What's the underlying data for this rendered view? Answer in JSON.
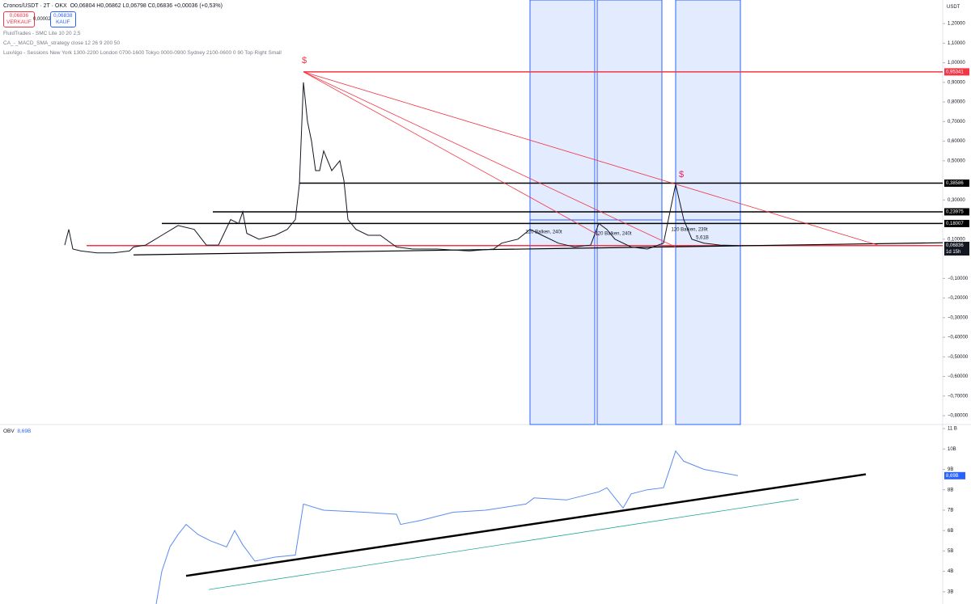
{
  "header": {
    "symbol": "Cronos/USDT · 2T · OKX",
    "ohlc": "O0,06804 H0,06862 L0,06798 C0,06836 +0,00036 (+0,53%)",
    "sell": {
      "price": "0,06836",
      "label": "VERKAUF"
    },
    "spread": "0,00002",
    "buy": {
      "price": "0,06838",
      "label": "KAUF"
    },
    "currency": "USDT"
  },
  "indicators": [
    "FluidTrades - SMC Lite 10 20 2,5",
    "CA_-_MACD_SMA_strategy close 12 26 9 200 50",
    "LuxAlgo - Sessions New York 1300-2200 London 0700-1600 Tokyo 0000-0900 Sydney 2100-0600 0 90 Top Right Small"
  ],
  "chart_data": [
    {
      "type": "line",
      "title": "Cronos/USDT",
      "color": "#131722",
      "xlim": [
        0,
        1165
      ],
      "ylim": [
        -0.845,
        1.32
      ],
      "x": [
        80,
        85,
        90,
        100,
        120,
        140,
        160,
        165,
        180,
        200,
        220,
        240,
        255,
        270,
        285,
        295,
        300,
        305,
        320,
        340,
        355,
        365,
        370,
        375,
        380,
        385,
        390,
        395,
        400,
        410,
        420,
        425,
        430,
        440,
        455,
        470,
        490,
        510,
        540,
        580,
        610,
        620,
        640,
        655,
        670,
        690,
        710,
        730,
        740,
        750,
        760,
        780,
        800,
        820,
        835,
        845,
        855,
        870,
        890,
        912
      ],
      "values": [
        0.07,
        0.15,
        0.05,
        0.04,
        0.03,
        0.03,
        0.04,
        0.06,
        0.07,
        0.12,
        0.17,
        0.15,
        0.07,
        0.07,
        0.2,
        0.18,
        0.24,
        0.13,
        0.1,
        0.12,
        0.15,
        0.2,
        0.38,
        0.9,
        0.7,
        0.6,
        0.45,
        0.45,
        0.55,
        0.45,
        0.5,
        0.4,
        0.2,
        0.15,
        0.12,
        0.12,
        0.06,
        0.05,
        0.05,
        0.04,
        0.05,
        0.08,
        0.1,
        0.15,
        0.12,
        0.08,
        0.06,
        0.07,
        0.18,
        0.15,
        0.1,
        0.06,
        0.05,
        0.08,
        0.38,
        0.2,
        0.1,
        0.08,
        0.07,
        0.068
      ],
      "yticks": [
        {
          "value": 1.2,
          "label": "1,20000"
        },
        {
          "value": 1.1,
          "label": "1,10000"
        },
        {
          "value": 1,
          "label": "1,00000"
        },
        {
          "value": 0.9,
          "label": "0,90000"
        },
        {
          "value": 0.8,
          "label": "0,80000"
        },
        {
          "value": 0.7,
          "label": "0,70000"
        },
        {
          "value": 0.6,
          "label": "0,60000"
        },
        {
          "value": 0.5,
          "label": "0,50000"
        },
        {
          "value": 0.3,
          "label": "0,30000"
        },
        {
          "value": 0.1,
          "label": "0,10000"
        },
        {
          "value": -0.1,
          "label": "−0,10000"
        },
        {
          "value": -0.2,
          "label": "−0,20000"
        },
        {
          "value": -0.3,
          "label": "−0,30000"
        },
        {
          "value": -0.4,
          "label": "−0,40000"
        },
        {
          "value": -0.5,
          "label": "−0,50000"
        },
        {
          "value": -0.6,
          "label": "−0,60000"
        },
        {
          "value": -0.7,
          "label": "−0,70000"
        },
        {
          "value": -0.8,
          "label": "−0,80000"
        }
      ],
      "levels": [
        {
          "value": 0.95341,
          "label": "0,95341",
          "color": "#f23645",
          "from": 375
        },
        {
          "value": 0.38586,
          "label": "0,38586",
          "color": "#000000",
          "from": 370
        },
        {
          "value": 0.23975,
          "label": "0,23975",
          "color": "#000000",
          "from": 263
        },
        {
          "value": 0.18007,
          "label": "0,18007",
          "color": "#000000",
          "from": 200
        },
        {
          "value": 0.06725,
          "label": "0,06725",
          "color": "#f23645",
          "from": 107
        }
      ],
      "last": {
        "value": 0.06836,
        "label": "0,06836",
        "countdown": "1d 15h"
      },
      "trendlines": [
        {
          "color": "#000000",
          "x": [
            165,
            1165
          ],
          "y": [
            0.02,
            0.082
          ]
        },
        {
          "color": "#f23645",
          "x": [
            375,
            740
          ],
          "y": [
            0.95341,
            0.12
          ]
        },
        {
          "color": "#f23645",
          "x": [
            375,
            835
          ],
          "y": [
            0.95341,
            0.06
          ]
        },
        {
          "color": "#f23645",
          "x": [
            375,
            1085
          ],
          "y": [
            0.95341,
            0.07
          ]
        }
      ],
      "sessions": [
        [
          655,
          735
        ],
        [
          738,
          818
        ],
        [
          835,
          915
        ]
      ],
      "annotations": [
        "$",
        "$",
        "120 Balken, 240t",
        "120 Balken, 240t",
        "120 Balken, 239t",
        "5,61B"
      ]
    },
    {
      "type": "line",
      "title": "OBV",
      "color": "#5b8def",
      "last_label": "8,69B",
      "xlim": [
        0,
        1165
      ],
      "ylim": [
        2.4,
        11.2
      ],
      "x": [
        193,
        200,
        210,
        220,
        230,
        245,
        260,
        280,
        290,
        300,
        315,
        340,
        365,
        375,
        400,
        450,
        490,
        495,
        520,
        560,
        600,
        650,
        660,
        700,
        740,
        750,
        770,
        780,
        800,
        820,
        835,
        845,
        870,
        912
      ],
      "values": [
        2.4,
        4,
        5.2,
        5.8,
        6.3,
        5.8,
        5.5,
        5.2,
        6,
        5.3,
        4.5,
        4.7,
        4.8,
        7.3,
        7,
        6.9,
        6.8,
        6.3,
        6.5,
        6.9,
        7,
        7.3,
        7.6,
        7.5,
        7.9,
        8.1,
        7.1,
        7.8,
        8,
        8.1,
        9.9,
        9.4,
        9,
        8.69
      ],
      "yticks": [
        {
          "value": 11,
          "label": "11 B"
        },
        {
          "value": 10,
          "label": "10B"
        },
        {
          "value": 9,
          "label": "9B"
        },
        {
          "value": 8,
          "label": "8B"
        },
        {
          "value": 7,
          "label": "7B"
        },
        {
          "value": 6,
          "label": "6B"
        },
        {
          "value": 5,
          "label": "5B"
        },
        {
          "value": 4,
          "label": "4B"
        },
        {
          "value": 3,
          "label": "3B"
        }
      ],
      "trendlines": [
        {
          "color": "#000000",
          "x": [
            230,
            1070
          ],
          "y": [
            3.78,
            8.76
          ]
        },
        {
          "color": "#26a69a",
          "x": [
            258,
            987
          ],
          "y": [
            3.11,
            7.54
          ]
        }
      ]
    }
  ]
}
